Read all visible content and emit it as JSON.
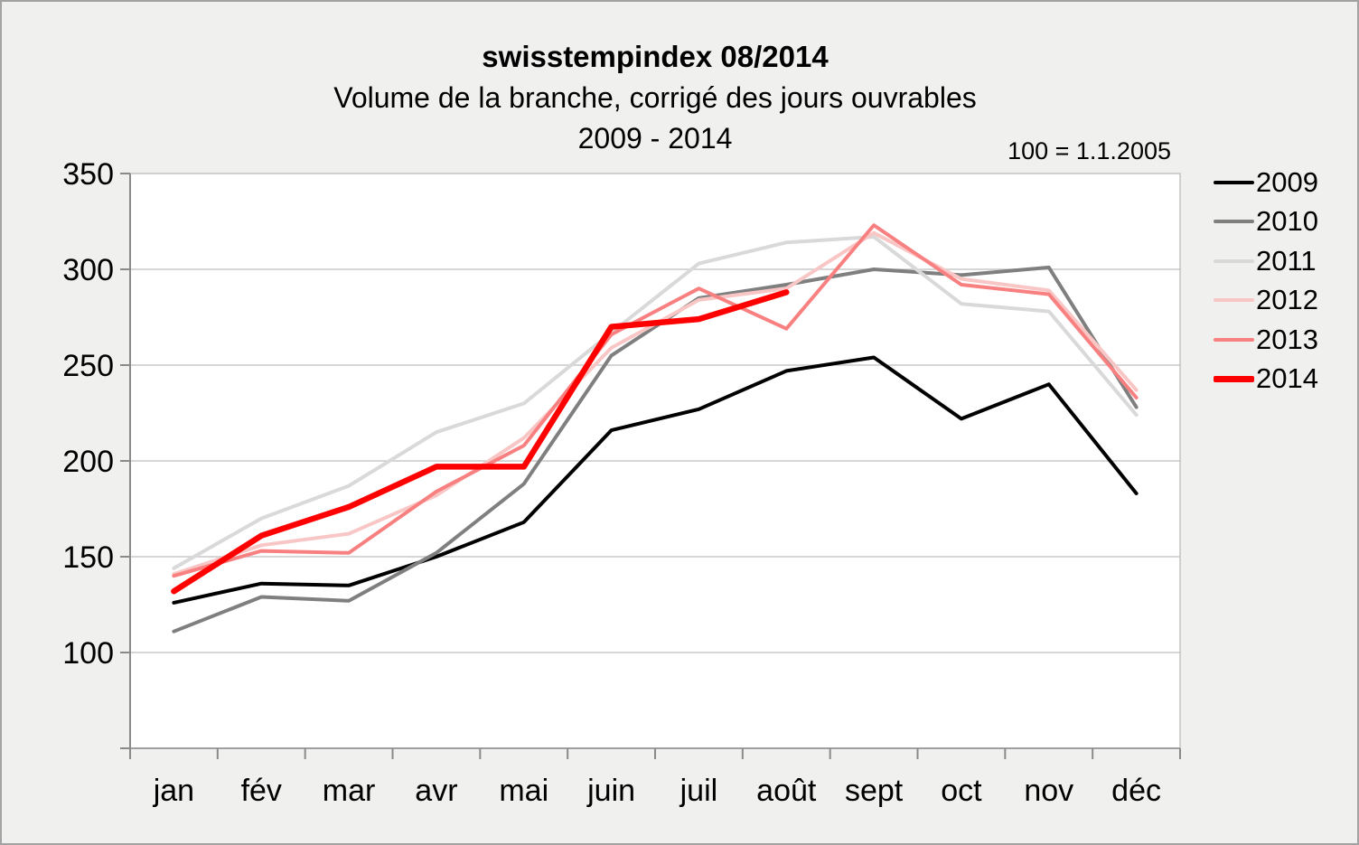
{
  "header": {
    "title": "swisstempindex 08/2014",
    "subtitle": "Volume de la branche, corrigé des jours ouvrables",
    "period": "2009 - 2014",
    "base_note": "100 = 1.1.2005"
  },
  "colors": {
    "background": "#f0f0ee",
    "plot_background": "#ffffff",
    "gridline": "#c9c9c9",
    "axis": "#8a8a8a",
    "plot_border": "#c2c2c2",
    "text": "#000000"
  },
  "chart_data": {
    "type": "line",
    "title": "swisstempindex 08/2014",
    "subtitle": "Volume de la branche, corrigé des jours ouvrables 2009 - 2014",
    "note": "100 = 1.1.2005",
    "categories": [
      "jan",
      "fév",
      "mar",
      "avr",
      "mai",
      "juin",
      "juil",
      "août",
      "sept",
      "oct",
      "nov",
      "déc"
    ],
    "ylim": [
      50,
      350
    ],
    "yticks": [
      100,
      150,
      200,
      250,
      300,
      350
    ],
    "grid": "horizontal",
    "legend_position": "right",
    "series": [
      {
        "name": "2009",
        "color": "#000000",
        "width": 4,
        "values": [
          126,
          136,
          135,
          150,
          168,
          216,
          227,
          247,
          254,
          222,
          240,
          183
        ]
      },
      {
        "name": "2010",
        "color": "#7f7f7f",
        "width": 4,
        "values": [
          111,
          129,
          127,
          152,
          188,
          255,
          285,
          292,
          300,
          297,
          301,
          228
        ]
      },
      {
        "name": "2011",
        "color": "#d9d9d9",
        "width": 4,
        "values": [
          144,
          170,
          187,
          215,
          230,
          267,
          303,
          314,
          317,
          282,
          278,
          224
        ]
      },
      {
        "name": "2012",
        "color": "#f9c6c6",
        "width": 4,
        "values": [
          141,
          156,
          162,
          182,
          212,
          259,
          284,
          290,
          319,
          295,
          289,
          237
        ]
      },
      {
        "name": "2013",
        "color": "#f98080",
        "width": 4,
        "values": [
          140,
          153,
          152,
          184,
          208,
          266,
          290,
          269,
          323,
          292,
          287,
          233
        ]
      },
      {
        "name": "2014",
        "color": "#fe0000",
        "width": 6.5,
        "values": [
          132,
          161,
          176,
          197,
          197,
          270,
          274,
          288
        ]
      }
    ]
  }
}
